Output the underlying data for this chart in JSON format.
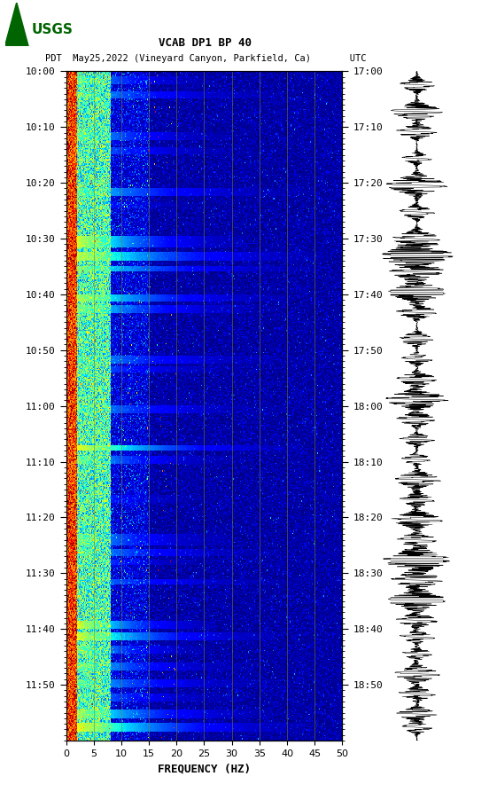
{
  "title_line1": "VCAB DP1 BP 40",
  "title_line2": "PDT  May25,2022 (Vineyard Canyon, Parkfield, Ca)       UTC",
  "xlabel": "FREQUENCY (HZ)",
  "freq_min": 0,
  "freq_max": 50,
  "freq_ticks": [
    0,
    5,
    10,
    15,
    20,
    25,
    30,
    35,
    40,
    45,
    50
  ],
  "time_labels_left": [
    "10:00",
    "10:10",
    "10:20",
    "10:30",
    "10:40",
    "10:50",
    "11:00",
    "11:10",
    "11:20",
    "11:30",
    "11:40",
    "11:50"
  ],
  "time_labels_right": [
    "17:00",
    "17:10",
    "17:20",
    "17:30",
    "17:40",
    "17:50",
    "18:00",
    "18:10",
    "18:20",
    "18:30",
    "18:40",
    "18:50"
  ],
  "n_time_steps": 600,
  "n_freq_steps": 500,
  "bg_color": "white",
  "colormap": "jet",
  "vline_color": "#888800",
  "vline_positions": [
    5,
    10,
    15,
    20,
    25,
    30,
    35,
    40,
    45
  ],
  "seed": 42,
  "fig_width": 5.52,
  "fig_height": 8.93,
  "dpi": 100
}
